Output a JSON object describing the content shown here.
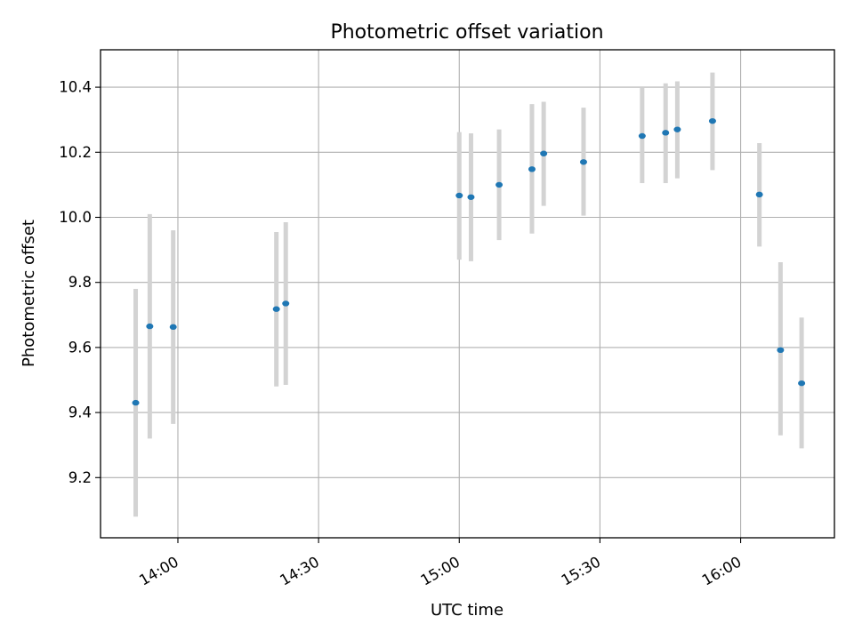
{
  "chart_data": {
    "type": "scatter",
    "title": "Photometric offset variation",
    "xlabel": "UTC time",
    "ylabel": "Photometric offset",
    "x_ticks": [
      "14:00",
      "14:30",
      "15:00",
      "15:30",
      "16:00"
    ],
    "y_ticks": [
      "9.2",
      "9.4",
      "9.6",
      "9.8",
      "10.0",
      "10.2",
      "10.4"
    ],
    "xlim": [
      "13:43:30",
      "16:20:00"
    ],
    "ylim": [
      9.015,
      10.515
    ],
    "grid": true,
    "series": [
      {
        "x": [
          "13:51",
          "13:54",
          "13:59",
          "14:21",
          "14:23",
          "15:00",
          "15:02.5",
          "15:08.5",
          "15:15.5",
          "15:18",
          "15:26.5",
          "15:39",
          "15:44",
          "15:46.5",
          "15:54",
          "16:04",
          "16:08.5",
          "16:13"
        ],
        "y": [
          9.43,
          9.665,
          9.663,
          9.718,
          9.735,
          10.067,
          10.062,
          10.1,
          10.148,
          10.196,
          10.17,
          10.25,
          10.26,
          10.27,
          10.296,
          10.07,
          9.592,
          9.49
        ],
        "yerr_low": [
          9.08,
          9.32,
          9.365,
          9.48,
          9.485,
          9.87,
          9.865,
          9.93,
          9.95,
          10.035,
          10.005,
          10.105,
          10.105,
          10.12,
          10.145,
          9.91,
          9.33,
          9.29
        ],
        "yerr_high": [
          9.78,
          10.01,
          9.96,
          9.955,
          9.985,
          10.262,
          10.258,
          10.27,
          10.348,
          10.355,
          10.337,
          10.4,
          10.412,
          10.418,
          10.445,
          10.228,
          9.862,
          9.692
        ],
        "marker_color": "#1f77b4",
        "errorbar_color": "#d3d3d3"
      }
    ]
  }
}
